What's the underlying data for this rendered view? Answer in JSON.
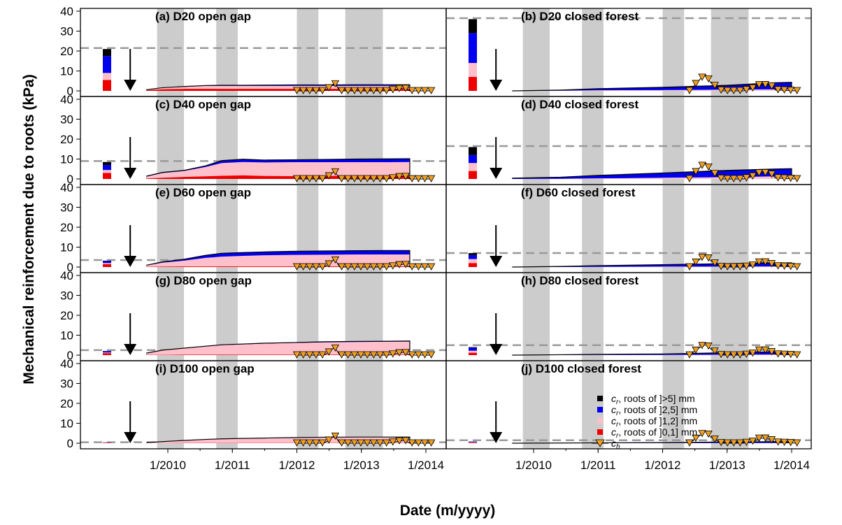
{
  "figure": {
    "ylabel": "Mechanical reinforcement due to roots (kPa)",
    "xlabel": "Date (m/yyyy)"
  },
  "colors": {
    "roots_gt5": "#000000",
    "roots_2_5": "#0000ee",
    "roots_1_2": "#ffc0cb",
    "roots_0_1": "#ee0000",
    "ch": "#f0a020",
    "shade": "#cccccc",
    "dashed": "#999999"
  },
  "legend": [
    {
      "label": "cr, roots of ]>5] mm",
      "prefix": "c",
      "sub": "r",
      "rest": ", roots of ]>5] mm",
      "color": "#000000",
      "shape": "square"
    },
    {
      "label": "cr, roots of ]2,5] mm",
      "prefix": "c",
      "sub": "r",
      "rest": ", roots of ]2,5] mm",
      "color": "#0000ee",
      "shape": "square"
    },
    {
      "label": "cr, roots of ]1,2] mm",
      "prefix": "c",
      "sub": "r",
      "rest": ", roots of ]1,2] mm",
      "color": "#ffc0cb",
      "shape": "square"
    },
    {
      "label": "cr, roots of ]0,1] mm",
      "prefix": "c",
      "sub": "r",
      "rest": ", roots of ]0,1] mm",
      "color": "#ee0000",
      "shape": "square"
    },
    {
      "label": "ch",
      "prefix": "c",
      "sub": "h",
      "rest": "",
      "color": "#f0a020",
      "shape": "triangle"
    }
  ],
  "chart_data": {
    "type": "area",
    "x_axis": {
      "ticks": [
        "1/2010",
        "1/2011",
        "1/2012",
        "1/2013",
        "1/2014"
      ],
      "range": [
        "5/2009",
        "2/2014"
      ]
    },
    "y_axis": {
      "ticks": [
        0,
        10,
        20,
        30,
        40
      ],
      "range": [
        0,
        40
      ]
    },
    "shaded_periods": [
      [
        "11/2009",
        "4/2010"
      ],
      [
        "10/2010",
        "2/2011"
      ],
      [
        "1/2012",
        "5/2012"
      ],
      [
        "10/2012",
        "5/2013"
      ]
    ],
    "arrow_date": "6/2009",
    "panels": [
      {
        "title": "(a) D20 open gap",
        "initial_bar": [
          5.5,
          3.5,
          8.5,
          3.5
        ],
        "dashed_line": 21.5,
        "cum_series": {
          "dates": [
            "9/2009",
            "12/2009",
            "4/2010",
            "8/2010",
            "11/2010",
            "3/2011",
            "7/2011",
            "12/2011",
            "6/2012",
            "12/2012",
            "6/2013",
            "10/2013"
          ],
          "d01": [
            0.3,
            0.8,
            1.0,
            1.0,
            1.0,
            1.0,
            1.0,
            1.0,
            1.0,
            1.0,
            1.0,
            1.0
          ],
          "d12": [
            0.6,
            1.5,
            2.0,
            2.5,
            2.5,
            2.5,
            2.5,
            2.5,
            2.5,
            2.5,
            2.5,
            2.5
          ],
          "d25": [
            0.6,
            1.6,
            2.1,
            2.6,
            2.7,
            2.7,
            2.8,
            2.9,
            2.9,
            3.0,
            3.0,
            3.0
          ],
          "dgt5": [
            0.6,
            1.6,
            2.2,
            2.7,
            2.8,
            2.8,
            2.9,
            3.0,
            3.0,
            3.1,
            3.1,
            3.1
          ]
        },
        "ch": {
          "dates": [
            "1/2012",
            "6/2012",
            "7/2012",
            "8/2012",
            "9/2012",
            "12/2012",
            "6/2013",
            "9/2013",
            "10/2013",
            "2/2014"
          ],
          "values": [
            0,
            0,
            1.5,
            4,
            0,
            0,
            0,
            1.5,
            0,
            0
          ]
        }
      },
      {
        "title": "(b) D20 closed forest",
        "initial_bar": [
          7,
          7,
          15,
          7
        ],
        "dashed_line": 36.5,
        "cum_series": {
          "dates": [
            "9/2009",
            "6/2010",
            "1/2011",
            "1/2012",
            "1/2013",
            "10/2013",
            "1/2014"
          ],
          "d01": [
            0,
            0,
            0,
            0,
            0,
            0,
            0
          ],
          "d12": [
            0,
            0.1,
            0.3,
            0.4,
            0.6,
            0.8,
            0.8
          ],
          "d25": [
            0,
            0.3,
            1.0,
            1.6,
            2.5,
            3.8,
            4.0
          ],
          "dgt5": [
            0,
            0.4,
            1.1,
            1.8,
            2.8,
            4.1,
            4.3
          ]
        },
        "ch": {
          "dates": [
            "6/2012",
            "7/2012",
            "8/2012",
            "9/2012",
            "10/2012",
            "12/2012",
            "4/2013",
            "6/2013",
            "7/2013",
            "8/2013",
            "9/2013",
            "10/2013",
            "2/2014"
          ],
          "values": [
            0,
            3,
            6,
            8,
            4,
            0,
            0,
            1.5,
            3,
            3,
            3,
            0.5,
            0
          ]
        }
      },
      {
        "title": "(c) D40 open gap",
        "initial_bar": [
          3,
          1.5,
          2.5,
          1.5
        ],
        "dashed_line": 9,
        "cum_series": {
          "dates": [
            "9/2009",
            "12/2009",
            "4/2010",
            "8/2010",
            "11/2010",
            "3/2011",
            "7/2011",
            "12/2011",
            "6/2012",
            "12/2012",
            "6/2013",
            "10/2013"
          ],
          "d01": [
            0.2,
            0.6,
            1.0,
            1.3,
            1.6,
            1.8,
            1.5,
            1.4,
            1.5,
            1.6,
            1.6,
            1.6
          ],
          "d12": [
            1.2,
            3.0,
            4.0,
            6.0,
            8.0,
            8.5,
            8.3,
            8.4,
            8.4,
            8.4,
            8.4,
            8.5
          ],
          "d25": [
            1.3,
            3.2,
            4.2,
            6.5,
            9.0,
            9.7,
            9.3,
            9.5,
            9.7,
            9.8,
            9.9,
            10.0
          ],
          "dgt5": [
            1.4,
            3.3,
            4.3,
            6.6,
            9.2,
            9.9,
            9.5,
            9.6,
            9.8,
            10.0,
            10.1,
            10.2
          ]
        },
        "ch": {
          "dates": [
            "1/2012",
            "6/2012",
            "7/2012",
            "8/2012",
            "9/2012",
            "12/2012",
            "6/2013",
            "9/2013",
            "10/2013",
            "2/2014"
          ],
          "values": [
            0,
            0,
            1.5,
            4,
            0,
            0,
            0,
            1.5,
            0,
            0
          ]
        }
      },
      {
        "title": "(d) D40 closed forest",
        "initial_bar": [
          4,
          4,
          4,
          4
        ],
        "dashed_line": 16.5,
        "cum_series": {
          "dates": [
            "9/2009",
            "6/2010",
            "1/2011",
            "1/2012",
            "1/2013",
            "10/2013",
            "1/2014"
          ],
          "d01": [
            0,
            0,
            0,
            0,
            0,
            0,
            0
          ],
          "d12": [
            0,
            0.1,
            0.3,
            0.6,
            0.9,
            1.3,
            1.3
          ],
          "d25": [
            0.3,
            0.8,
            1.6,
            2.8,
            4.0,
            4.8,
            5.0
          ],
          "dgt5": [
            0.4,
            0.9,
            1.8,
            3.0,
            4.3,
            5.0,
            5.2
          ]
        },
        "ch": {
          "dates": [
            "6/2012",
            "7/2012",
            "8/2012",
            "9/2012",
            "10/2012",
            "12/2012",
            "4/2013",
            "6/2013",
            "7/2013",
            "8/2013",
            "9/2013",
            "10/2013",
            "2/2014"
          ],
          "values": [
            0,
            3,
            6,
            8,
            4,
            0,
            0,
            1.5,
            3,
            3,
            3,
            0.5,
            0
          ]
        }
      },
      {
        "title": "(e) D60 open gap",
        "initial_bar": [
          1.5,
          0.5,
          1.0,
          0.2
        ],
        "dashed_line": 3.5,
        "cum_series": {
          "dates": [
            "9/2009",
            "12/2009",
            "4/2010",
            "8/2010",
            "11/2010",
            "3/2011",
            "7/2011",
            "12/2011",
            "6/2012",
            "12/2012",
            "6/2013",
            "10/2013"
          ],
          "d01": [
            0.1,
            0.2,
            0.3,
            0.3,
            0.3,
            0.3,
            0.3,
            0.3,
            0.3,
            0.3,
            0.3,
            0.3
          ],
          "d12": [
            0.8,
            2.2,
            3.2,
            4.6,
            5.2,
            5.6,
            5.9,
            6.1,
            6.2,
            6.3,
            6.3,
            6.3
          ],
          "d25": [
            0.9,
            2.5,
            3.8,
            5.8,
            6.8,
            7.2,
            7.5,
            7.8,
            8.0,
            8.1,
            8.2,
            8.2
          ],
          "dgt5": [
            0.9,
            2.6,
            3.9,
            5.9,
            6.9,
            7.3,
            7.6,
            7.9,
            8.1,
            8.2,
            8.3,
            8.3
          ]
        },
        "ch": {
          "dates": [
            "1/2012",
            "6/2012",
            "7/2012",
            "8/2012",
            "9/2012",
            "12/2012",
            "6/2013",
            "9/2013",
            "10/2013",
            "2/2014"
          ],
          "values": [
            0,
            0,
            1.5,
            4,
            0,
            0,
            0,
            1.5,
            0,
            0
          ]
        }
      },
      {
        "title": "(f) D60 closed forest",
        "initial_bar": [
          2,
          2,
          2,
          1
        ],
        "dashed_line": 7,
        "cum_series": {
          "dates": [
            "9/2009",
            "6/2010",
            "1/2011",
            "1/2012",
            "1/2013",
            "10/2013",
            "1/2014"
          ],
          "d01": [
            0,
            0,
            0,
            0,
            0,
            0,
            0
          ],
          "d12": [
            0,
            0,
            0.1,
            0.2,
            0.2,
            0.3,
            0.3
          ],
          "d25": [
            0,
            0.2,
            0.6,
            1.0,
            1.5,
            1.8,
            1.8
          ],
          "dgt5": [
            0,
            0.3,
            0.7,
            1.2,
            1.7,
            2.1,
            2.1
          ]
        },
        "ch": {
          "dates": [
            "6/2012",
            "7/2012",
            "8/2012",
            "9/2012",
            "10/2012",
            "12/2012",
            "4/2013",
            "6/2013",
            "7/2013",
            "8/2013",
            "9/2013",
            "10/2013",
            "2/2014"
          ],
          "values": [
            0,
            2,
            4,
            6,
            3,
            0,
            0,
            1,
            2.5,
            2.5,
            2,
            0.5,
            0
          ]
        }
      },
      {
        "title": "(g) D80 open gap",
        "initial_bar": [
          1.0,
          0.3,
          0.7,
          0.1
        ],
        "dashed_line": 2.5,
        "cum_series": {
          "dates": [
            "9/2009",
            "12/2009",
            "4/2010",
            "8/2010",
            "11/2010",
            "3/2011",
            "7/2011",
            "12/2011",
            "6/2012",
            "12/2012",
            "6/2013",
            "10/2013"
          ],
          "d01": [
            0.1,
            0.1,
            0.2,
            0.2,
            0.2,
            0.2,
            0.2,
            0.2,
            0.2,
            0.2,
            0.2,
            0.2
          ],
          "d12": [
            0.9,
            2.4,
            3.4,
            4.3,
            5.0,
            5.4,
            5.8,
            6.1,
            6.4,
            6.6,
            6.7,
            6.8
          ],
          "d25": [
            1.0,
            2.5,
            3.5,
            4.4,
            5.1,
            5.6,
            6.0,
            6.3,
            6.7,
            6.9,
            7.0,
            7.1
          ],
          "dgt5": [
            1.0,
            2.5,
            3.5,
            4.5,
            5.2,
            5.6,
            6.0,
            6.3,
            6.7,
            6.9,
            7.0,
            7.1
          ]
        },
        "ch": {
          "dates": [
            "1/2012",
            "6/2012",
            "7/2012",
            "8/2012",
            "9/2012",
            "12/2012",
            "6/2013",
            "9/2013",
            "10/2013",
            "2/2014"
          ],
          "values": [
            0,
            0,
            1.5,
            4,
            0,
            0,
            0,
            1.5,
            0,
            0
          ]
        }
      },
      {
        "title": "(h) D80 closed forest",
        "initial_bar": [
          1.2,
          1.0,
          1.5,
          0.3
        ],
        "dashed_line": 5,
        "cum_series": {
          "dates": [
            "9/2009",
            "6/2010",
            "1/2011",
            "1/2012",
            "1/2013",
            "10/2013",
            "1/2014"
          ],
          "d01": [
            0,
            0,
            0,
            0,
            0,
            0,
            0
          ],
          "d12": [
            0,
            0,
            0.1,
            0.1,
            0.2,
            0.3,
            0.3
          ],
          "d25": [
            0,
            0.1,
            0.3,
            0.5,
            1.0,
            1.5,
            1.5
          ],
          "dgt5": [
            0,
            0.2,
            0.4,
            0.6,
            1.2,
            1.7,
            1.7
          ]
        },
        "ch": {
          "dates": [
            "6/2012",
            "7/2012",
            "8/2012",
            "9/2012",
            "10/2012",
            "12/2012",
            "4/2013",
            "6/2013",
            "7/2013",
            "8/2013",
            "9/2013",
            "10/2013",
            "2/2014"
          ],
          "values": [
            0,
            2,
            4,
            6,
            3,
            0,
            0,
            1,
            2.5,
            2.5,
            2,
            0.5,
            0
          ]
        }
      },
      {
        "title": "(i) D100 open gap",
        "initial_bar": [
          0.2,
          0.1,
          0.1,
          0.0
        ],
        "dashed_line": 0.5,
        "cum_series": {
          "dates": [
            "9/2009",
            "12/2009",
            "4/2010",
            "8/2010",
            "11/2010",
            "3/2011",
            "7/2011",
            "12/2011",
            "6/2012",
            "12/2012",
            "6/2013",
            "10/2013"
          ],
          "d01": [
            0,
            0,
            0.1,
            0.1,
            0.1,
            0.1,
            0.1,
            0.1,
            0.1,
            0.1,
            0.1,
            0.1
          ],
          "d12": [
            0.3,
            0.8,
            1.3,
            1.8,
            2.1,
            2.3,
            2.5,
            2.7,
            2.9,
            3.0,
            3.0,
            3.0
          ],
          "d25": [
            0.3,
            0.8,
            1.4,
            1.9,
            2.2,
            2.4,
            2.6,
            2.8,
            3.0,
            3.1,
            3.1,
            3.1
          ],
          "dgt5": [
            0.3,
            0.8,
            1.4,
            1.9,
            2.2,
            2.4,
            2.6,
            2.8,
            3.0,
            3.1,
            3.1,
            3.1
          ]
        },
        "ch": {
          "dates": [
            "1/2012",
            "6/2012",
            "7/2012",
            "8/2012",
            "9/2012",
            "12/2012",
            "6/2013",
            "9/2013",
            "10/2013",
            "2/2014"
          ],
          "values": [
            0,
            0,
            1.5,
            4,
            0,
            0,
            0,
            1.5,
            0,
            0
          ]
        }
      },
      {
        "title": "(j) D100 closed forest",
        "initial_bar": [
          0.3,
          0.2,
          0.3,
          0.1
        ],
        "dashed_line": 1.5,
        "cum_series": {
          "dates": [
            "9/2009",
            "6/2010",
            "1/2011",
            "1/2012",
            "1/2013",
            "10/2013",
            "1/2014"
          ],
          "d01": [
            0,
            0,
            0,
            0,
            0,
            0,
            0
          ],
          "d12": [
            0,
            0,
            0,
            0.1,
            0.1,
            0.1,
            0.1
          ],
          "d25": [
            0,
            0.1,
            0.2,
            0.3,
            0.5,
            0.7,
            0.7
          ],
          "dgt5": [
            0,
            0.1,
            0.2,
            0.3,
            0.6,
            0.8,
            0.8
          ]
        },
        "ch": {
          "dates": [
            "6/2012",
            "7/2012",
            "8/2012",
            "9/2012",
            "10/2012",
            "12/2012",
            "4/2013",
            "6/2013",
            "7/2013",
            "8/2013",
            "9/2013",
            "10/2013",
            "2/2014"
          ],
          "values": [
            0,
            2,
            4,
            6,
            3,
            0,
            0,
            1,
            2.5,
            2.5,
            2,
            0.5,
            0
          ]
        }
      }
    ]
  }
}
